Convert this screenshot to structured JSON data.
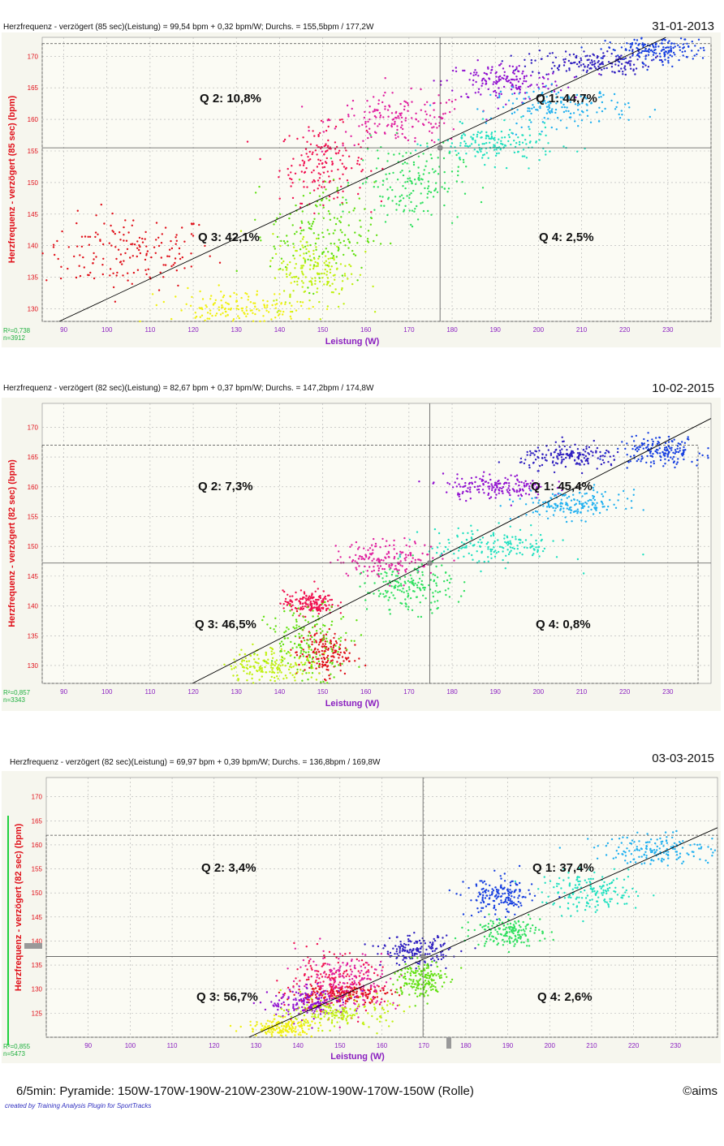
{
  "charts": [
    {
      "title": "Herzfrequenz - verzögert (85 sec)(Leistung) = 99,54 bpm + 0,32 bpm/W; Durchs. = 155,5bpm / 177,2W",
      "date": "31-01-2013",
      "ylabel": "Herzfrequenz - verzögert (85 sec) (bpm)",
      "xlabel": "Leistung (W)",
      "r2": "R²=0,738",
      "n": "n=3912",
      "q1": "Q 1: 44,7%",
      "q2": "Q 2: 10,8%",
      "q3": "Q 3: 42,1%",
      "q4": "Q 4: 2,5%"
    },
    {
      "title": "Herzfrequenz - verzögert (82 sec)(Leistung) = 82,67 bpm + 0,37 bpm/W; Durchs. = 147,2bpm / 174,8W",
      "date": "10-02-2015",
      "ylabel": "Herzfrequenz - verzögert (82 sec) (bpm)",
      "xlabel": "Leistung (W)",
      "r2": "R²=0,857",
      "n": "n=3343",
      "q1": "Q 1: 45,4%",
      "q2": "Q 2: 7,3%",
      "q3": "Q 3: 46,5%",
      "q4": "Q 4: 0,8%"
    },
    {
      "title": "Herzfrequenz - verzögert (82 sec)(Leistung) = 69,97 bpm + 0,39 bpm/W; Durchs. = 136,8bpm / 169,8W",
      "date": "03-03-2015",
      "ylabel": "Herzfrequenz - verzögert (82 sec) (bpm)",
      "xlabel": "Leistung (W)",
      "r2": "R²=0,855",
      "n": "n=5473",
      "q1": "Q 1: 37,4%",
      "q2": "Q 2: 3,4%",
      "q3": "Q 3: 56,7%",
      "q4": "Q 4: 2,6%"
    }
  ],
  "footer": "6/5min: Pyramide: 150W-170W-190W-210W-230W-210W-190W-170W-150W  (Rolle)",
  "copyright": "©aims",
  "credit": "created by Training Analysis Plugin for SportTracks",
  "colors": {
    "title_label": "#e0101a",
    "xlabel": "#8a1fc0",
    "stats": "#20b040",
    "plot_bg": "#fbfbf4",
    "outer_bg": "#f6f6ee",
    "grid": "#b0b0b0"
  },
  "chart_data": [
    {
      "type": "scatter",
      "title": "Herzfrequenz - verzögert (85 sec)(Leistung) = 99,54 bpm + 0,32 bpm/W; Durchs. = 155,5bpm / 177,2W",
      "xlabel": "Leistung (W)",
      "ylabel": "Herzfrequenz - verzögert (85 sec) (bpm)",
      "xlim": [
        85,
        240
      ],
      "ylim": [
        128,
        173
      ],
      "xticks": [
        90,
        100,
        110,
        120,
        130,
        140,
        150,
        160,
        170,
        180,
        190,
        200,
        210,
        220,
        230
      ],
      "yticks": [
        130,
        135,
        140,
        145,
        150,
        155,
        160,
        165,
        170
      ],
      "regression": {
        "intercept": 99.54,
        "slope": 0.32
      },
      "mean": {
        "x": 177.2,
        "y": 155.5
      },
      "range_box": {
        "x": [
          85,
          240
        ],
        "y": [
          128,
          172
        ]
      },
      "grid": true,
      "clusters": [
        {
          "color": "#e0101a",
          "cx": 105,
          "cy": 139,
          "sx": 10,
          "sy": 3
        },
        {
          "color": "#f01050",
          "cx": 150,
          "cy": 153,
          "sx": 5,
          "sy": 3
        },
        {
          "color": "#e020a0",
          "cx": 168,
          "cy": 160,
          "sx": 8,
          "sy": 2
        },
        {
          "color": "#9010d0",
          "cx": 192,
          "cy": 166,
          "sx": 7,
          "sy": 1.5
        },
        {
          "color": "#3020c0",
          "cx": 212,
          "cy": 169,
          "sx": 7,
          "sy": 1
        },
        {
          "color": "#1840e0",
          "cx": 228,
          "cy": 171,
          "sx": 6,
          "sy": 1
        },
        {
          "color": "#20b0f0",
          "cx": 205,
          "cy": 162,
          "sx": 8,
          "sy": 1.5
        },
        {
          "color": "#20e0c0",
          "cx": 190,
          "cy": 156,
          "sx": 7,
          "sy": 1.5
        },
        {
          "color": "#30e060",
          "cx": 170,
          "cy": 150,
          "sx": 6,
          "sy": 3
        },
        {
          "color": "#60e010",
          "cx": 150,
          "cy": 142,
          "sx": 6,
          "sy": 4
        },
        {
          "color": "#c0f010",
          "cx": 148,
          "cy": 136,
          "sx": 5,
          "sy": 3
        },
        {
          "color": "#f0f010",
          "cx": 130,
          "cy": 130,
          "sx": 8,
          "sy": 1.5
        }
      ]
    },
    {
      "type": "scatter",
      "title": "Herzfrequenz - verzögert (82 sec)(Leistung) = 82,67 bpm + 0,37 bpm/W; Durchs. = 147,2bpm / 174,8W",
      "xlabel": "Leistung (W)",
      "ylabel": "Herzfrequenz - verzögert (82 sec) (bpm)",
      "xlim": [
        85,
        240
      ],
      "ylim": [
        127,
        174
      ],
      "xticks": [
        90,
        100,
        110,
        120,
        130,
        140,
        150,
        160,
        170,
        180,
        190,
        200,
        210,
        220,
        230
      ],
      "yticks": [
        130,
        135,
        140,
        145,
        150,
        155,
        160,
        165,
        170
      ],
      "regression": {
        "intercept": 82.67,
        "slope": 0.37
      },
      "mean": {
        "x": 174.8,
        "y": 147.2
      },
      "range_box": {
        "x": [
          85,
          237
        ],
        "y": [
          127,
          167
        ]
      },
      "grid": true,
      "clusters": [
        {
          "color": "#e0101a",
          "cx": 150,
          "cy": 132,
          "sx": 3,
          "sy": 2
        },
        {
          "color": "#f01050",
          "cx": 147,
          "cy": 140.5,
          "sx": 3,
          "sy": 1
        },
        {
          "color": "#e020a0",
          "cx": 165,
          "cy": 148,
          "sx": 6,
          "sy": 1.5
        },
        {
          "color": "#9010d0",
          "cx": 190,
          "cy": 160,
          "sx": 6,
          "sy": 1
        },
        {
          "color": "#3020c0",
          "cx": 208,
          "cy": 165,
          "sx": 6,
          "sy": 1
        },
        {
          "color": "#1840e0",
          "cx": 228,
          "cy": 166,
          "sx": 5,
          "sy": 1.2
        },
        {
          "color": "#20b0f0",
          "cx": 208,
          "cy": 157,
          "sx": 6,
          "sy": 1.2
        },
        {
          "color": "#20e0c0",
          "cx": 190,
          "cy": 150,
          "sx": 8,
          "sy": 1.5
        },
        {
          "color": "#30e060",
          "cx": 170,
          "cy": 143,
          "sx": 5,
          "sy": 2
        },
        {
          "color": "#60e010",
          "cx": 147,
          "cy": 134,
          "sx": 5,
          "sy": 3
        },
        {
          "color": "#c0f010",
          "cx": 138,
          "cy": 130,
          "sx": 5,
          "sy": 1.5
        }
      ]
    },
    {
      "type": "scatter",
      "title": "Herzfrequenz - verzögert (82 sec)(Leistung) = 69,97 bpm + 0,39 bpm/W; Durchs. = 136,8bpm / 169,8W",
      "xlabel": "Leistung (W)",
      "ylabel": "Herzfrequenz - verzögert (82 sec) (bpm)",
      "xlim": [
        80,
        240
      ],
      "ylim": [
        120,
        174
      ],
      "xticks": [
        90,
        100,
        110,
        120,
        130,
        140,
        150,
        160,
        170,
        180,
        190,
        200,
        210,
        220,
        230
      ],
      "yticks": [
        125,
        130,
        135,
        140,
        145,
        150,
        155,
        160,
        165,
        170
      ],
      "regression": {
        "intercept": 69.97,
        "slope": 0.39
      },
      "mean": {
        "x": 169.8,
        "y": 136.8
      },
      "range_box": {
        "x": [
          80,
          240
        ],
        "y": [
          120,
          162
        ]
      },
      "grid": true,
      "clusters": [
        {
          "color": "#e0101a",
          "cx": 150,
          "cy": 129,
          "sx": 6,
          "sy": 1
        },
        {
          "color": "#f01050",
          "cx": 148,
          "cy": 131,
          "sx": 6,
          "sy": 3
        },
        {
          "color": "#e020a0",
          "cx": 152,
          "cy": 132,
          "sx": 6,
          "sy": 3
        },
        {
          "color": "#9010d0",
          "cx": 143,
          "cy": 127,
          "sx": 5,
          "sy": 1.5
        },
        {
          "color": "#3020c0",
          "cx": 168,
          "cy": 138,
          "sx": 4,
          "sy": 1.5
        },
        {
          "color": "#1840e0",
          "cx": 188,
          "cy": 149,
          "sx": 4,
          "sy": 2
        },
        {
          "color": "#20b0f0",
          "cx": 227,
          "cy": 159,
          "sx": 8,
          "sy": 1.5
        },
        {
          "color": "#20e0c0",
          "cx": 210,
          "cy": 150,
          "sx": 6,
          "sy": 2
        },
        {
          "color": "#30e060",
          "cx": 190,
          "cy": 142,
          "sx": 4,
          "sy": 1.5
        },
        {
          "color": "#60e010",
          "cx": 169,
          "cy": 132,
          "sx": 3,
          "sy": 2
        },
        {
          "color": "#c0f010",
          "cx": 150,
          "cy": 125,
          "sx": 6,
          "sy": 1.5
        },
        {
          "color": "#f0f010",
          "cx": 136,
          "cy": 122,
          "sx": 4,
          "sy": 1
        }
      ]
    }
  ]
}
